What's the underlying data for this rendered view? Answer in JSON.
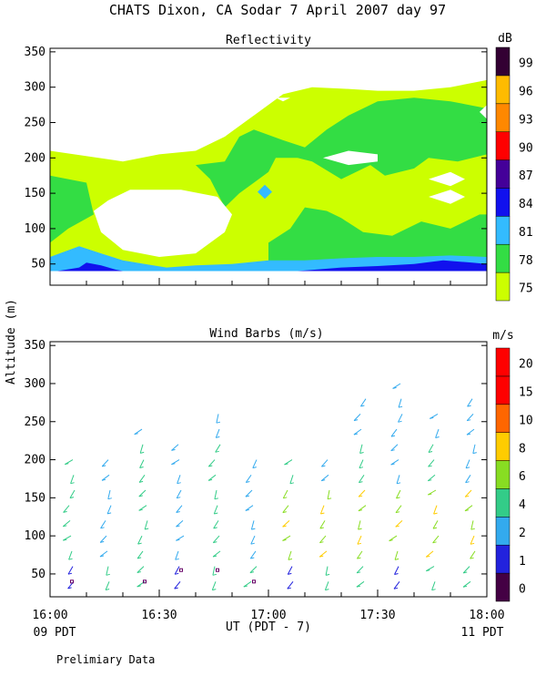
{
  "header": {
    "title": "CHATS Dixon, CA  Sodar    7 April 2007   day  97"
  },
  "footer": {
    "left_time_label": "09 PDT",
    "right_time_label": "11 PDT",
    "x_axis_label": "UT  (PDT - 7)",
    "note": "Prelimiary Data"
  },
  "shared_y_label": "Altitude (m)",
  "colors": {
    "refl": [
      "#ccff00",
      "#33dd44",
      "#33bbff",
      "#1111ee",
      "#440099",
      "#ff0000",
      "#ff8800",
      "#ffbb00",
      "#330033"
    ],
    "wind": [
      "#440044",
      "#2222dd",
      "#33aaee",
      "#33cc88",
      "#88dd22",
      "#ffcc00",
      "#ff6600",
      "#ff0000"
    ]
  },
  "chart_data": [
    {
      "type": "heatmap",
      "title": "Reflectivity",
      "unit_label": "dB",
      "x_ticks": [
        "16:00",
        "16:30",
        "17:00",
        "17:30",
        "18:00"
      ],
      "xlim_minutes": [
        0,
        120
      ],
      "ylim": [
        20,
        355
      ],
      "y_ticks": [
        50,
        100,
        150,
        200,
        250,
        300,
        350
      ],
      "colorbar_levels": [
        75,
        78,
        81,
        84,
        87,
        90,
        93,
        96,
        99
      ],
      "regions": [
        {
          "level": 75,
          "points": [
            [
              0,
              40
            ],
            [
              0,
              210
            ],
            [
              20,
              195
            ],
            [
              30,
              205
            ],
            [
              40,
              210
            ],
            [
              48,
              230
            ],
            [
              56,
              260
            ],
            [
              64,
              290
            ],
            [
              72,
              300
            ],
            [
              80,
              298
            ],
            [
              90,
              295
            ],
            [
              100,
              295
            ],
            [
              110,
              300
            ],
            [
              120,
              310
            ],
            [
              120,
              40
            ]
          ]
        },
        {
          "level": 78,
          "points": [
            [
              0,
              40
            ],
            [
              0,
              175
            ],
            [
              10,
              165
            ],
            [
              12,
              120
            ],
            [
              5,
              100
            ],
            [
              0,
              80
            ]
          ]
        },
        {
          "level": 78,
          "points": [
            [
              36,
              200
            ],
            [
              40,
              190
            ],
            [
              48,
              195
            ],
            [
              52,
              230
            ],
            [
              56,
              240
            ],
            [
              64,
              225
            ],
            [
              70,
              215
            ],
            [
              76,
              240
            ],
            [
              82,
              260
            ],
            [
              90,
              280
            ],
            [
              100,
              285
            ],
            [
              110,
              280
            ],
            [
              120,
              270
            ],
            [
              120,
              205
            ],
            [
              112,
              195
            ],
            [
              104,
              200
            ],
            [
              100,
              185
            ],
            [
              92,
              175
            ],
            [
              88,
              190
            ],
            [
              80,
              170
            ],
            [
              72,
              195
            ],
            [
              68,
              200
            ],
            [
              62,
              200
            ],
            [
              60,
              180
            ],
            [
              56,
              165
            ],
            [
              52,
              150
            ],
            [
              48,
              130
            ],
            [
              44,
              170
            ],
            [
              40,
              190
            ]
          ]
        },
        {
          "level": 78,
          "points": [
            [
              60,
              80
            ],
            [
              66,
              100
            ],
            [
              70,
              130
            ],
            [
              76,
              125
            ],
            [
              80,
              115
            ],
            [
              86,
              95
            ],
            [
              94,
              90
            ],
            [
              102,
              110
            ],
            [
              110,
              100
            ],
            [
              118,
              120
            ],
            [
              120,
              120
            ],
            [
              120,
              40
            ],
            [
              60,
              40
            ]
          ]
        },
        {
          "level": 81,
          "points": [
            [
              0,
              40
            ],
            [
              0,
              60
            ],
            [
              8,
              75
            ],
            [
              14,
              65
            ],
            [
              20,
              55
            ],
            [
              26,
              50
            ],
            [
              32,
              45
            ],
            [
              40,
              48
            ],
            [
              50,
              50
            ],
            [
              60,
              55
            ],
            [
              70,
              55
            ],
            [
              80,
              58
            ],
            [
              90,
              60
            ],
            [
              100,
              60
            ],
            [
              110,
              62
            ],
            [
              120,
              60
            ],
            [
              120,
              40
            ]
          ]
        },
        {
          "level": 81,
          "points": [
            [
              57,
              152
            ],
            [
              59,
              162
            ],
            [
              61,
              152
            ],
            [
              59,
              142
            ]
          ]
        },
        {
          "level": 84,
          "points": [
            [
              2,
              40
            ],
            [
              8,
              45
            ],
            [
              10,
              52
            ],
            [
              14,
              48
            ],
            [
              18,
              42
            ],
            [
              20,
              40
            ]
          ]
        },
        {
          "level": 84,
          "points": [
            [
              68,
              40
            ],
            [
              80,
              45
            ],
            [
              90,
              47
            ],
            [
              100,
              50
            ],
            [
              108,
              55
            ],
            [
              116,
              52
            ],
            [
              120,
              50
            ],
            [
              120,
              40
            ]
          ]
        }
      ],
      "white_regions": [
        [
          [
            16,
            140
          ],
          [
            22,
            155
          ],
          [
            36,
            155
          ],
          [
            46,
            145
          ],
          [
            50,
            120
          ],
          [
            48,
            95
          ],
          [
            40,
            65
          ],
          [
            30,
            60
          ],
          [
            20,
            70
          ],
          [
            14,
            95
          ],
          [
            12,
            125
          ]
        ],
        [
          [
            75,
            200
          ],
          [
            82,
            190
          ],
          [
            90,
            195
          ],
          [
            90,
            205
          ],
          [
            82,
            210
          ]
        ],
        [
          [
            104,
            170
          ],
          [
            110,
            180
          ],
          [
            114,
            170
          ],
          [
            110,
            160
          ]
        ],
        [
          [
            104,
            145
          ],
          [
            110,
            155
          ],
          [
            114,
            145
          ],
          [
            110,
            135
          ]
        ],
        [
          [
            118,
            265
          ],
          [
            120,
            255
          ],
          [
            120,
            275
          ]
        ],
        [
          [
            62,
            285
          ],
          [
            64,
            280
          ],
          [
            66,
            285
          ]
        ],
        [
          [
            59,
            340
          ],
          [
            62,
            350
          ],
          [
            66,
            350
          ],
          [
            65,
            340
          ]
        ],
        [
          [
            39,
            340
          ],
          [
            40,
            342
          ],
          [
            41,
            340
          ],
          [
            40,
            338
          ]
        ]
      ]
    },
    {
      "type": "scatter",
      "title": "Wind Barbs (m/s)",
      "unit_label": "m/s",
      "x_ticks": [
        "16:00",
        "16:30",
        "17:00",
        "17:30",
        "18:00"
      ],
      "xlim_minutes": [
        0,
        120
      ],
      "ylim": [
        20,
        355
      ],
      "y_ticks": [
        50,
        100,
        150,
        200,
        250,
        300,
        350
      ],
      "colorbar_levels": [
        0,
        1,
        2,
        4,
        6,
        8,
        10,
        15,
        20
      ],
      "columns_minutes": [
        6,
        16,
        26,
        36,
        46,
        56,
        66,
        76,
        86,
        96,
        106,
        116
      ],
      "column_tops": [
        205,
        205,
        240,
        230,
        265,
        210,
        205,
        210,
        285,
        310,
        260,
        290
      ],
      "column_bottoms": [
        30,
        30,
        30,
        30,
        30,
        30,
        30,
        30,
        30,
        30,
        30,
        30
      ],
      "altitude_step": 20
    }
  ]
}
